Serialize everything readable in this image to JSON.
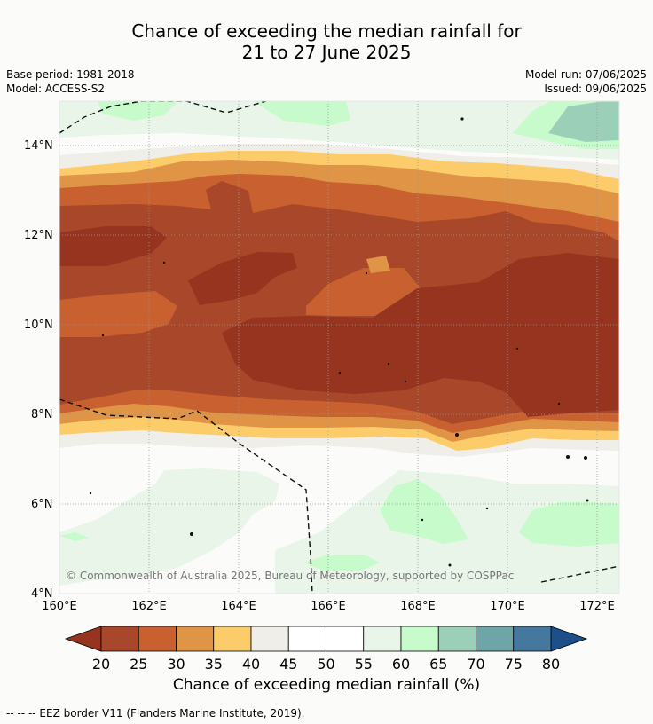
{
  "title_line1": "Chance of exceeding the median rainfall for",
  "title_line2": "21 to 27 June 2025",
  "base_period": "Base period: 1981-2018",
  "model": "Model: ACCESS-S2",
  "model_run": "Model run: 07/06/2025",
  "issued": "Issued: 09/06/2025",
  "copyright": "© Commonwealth of Australia 2025, Bureau of Meteorology, supported by COSPPac",
  "lon_labels": [
    "160°E",
    "162°E",
    "164°E",
    "166°E",
    "168°E",
    "170°E",
    "172°E"
  ],
  "lat_labels": [
    "14°N",
    "12°N",
    "10°N",
    "8°N",
    "6°N",
    "4°N"
  ],
  "colorbar": {
    "title": "Chance of exceeding median rainfall (%)",
    "ticks": [
      "20",
      "25",
      "30",
      "35",
      "40",
      "45",
      "50",
      "55",
      "60",
      "65",
      "70",
      "75",
      "80"
    ],
    "colors": [
      "#a8472a",
      "#c8612f",
      "#e09446",
      "#fccb6a",
      "#efeee9",
      "#ffffff",
      "#ffffff",
      "#e9f5e8",
      "#c8fbcb",
      "#9ccfb8",
      "#6ea5a7",
      "#44789f"
    ],
    "low_color": "#963420",
    "high_color": "#1d4f8a"
  },
  "legend_note": "--  --  -- EEZ border V11 (Flanders Marine Institute, 2019)."
}
